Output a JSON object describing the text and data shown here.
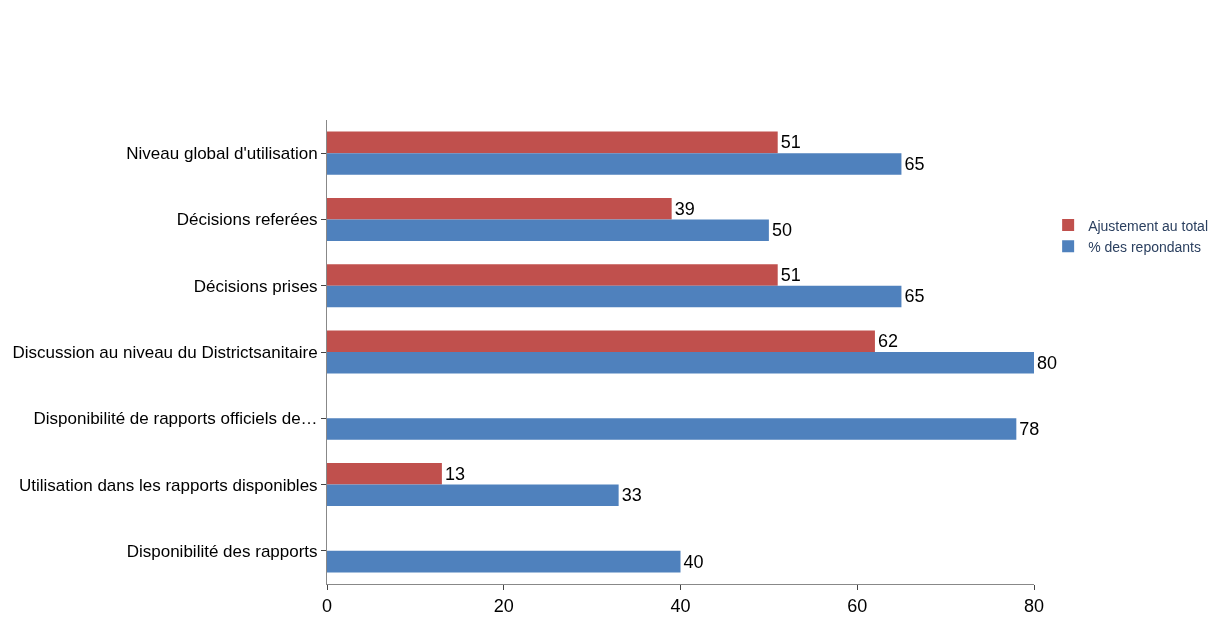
{
  "chart_data": {
    "type": "bar",
    "orientation": "horizontal",
    "categories": [
      "Niveau global d'utilisation",
      "Décisions referées",
      "Décisions prises",
      "Discussion au niveau du Districtsanitaire",
      "Disponibilité de rapports officiels de…",
      "Utilisation dans les rapports disponibles",
      "Disponibilité des rapports"
    ],
    "series": [
      {
        "name": "Ajustement au total",
        "color": "#c0504d",
        "values": [
          51,
          39,
          51,
          62,
          null,
          13,
          null
        ]
      },
      {
        "name": "% des repondants",
        "color": "#4f81bd",
        "values": [
          65,
          50,
          65,
          80,
          78,
          33,
          40
        ]
      }
    ],
    "xlim": [
      0,
      80
    ],
    "xticks": [
      0,
      20,
      40,
      60,
      80
    ],
    "legend": "right",
    "data_labels": true
  }
}
